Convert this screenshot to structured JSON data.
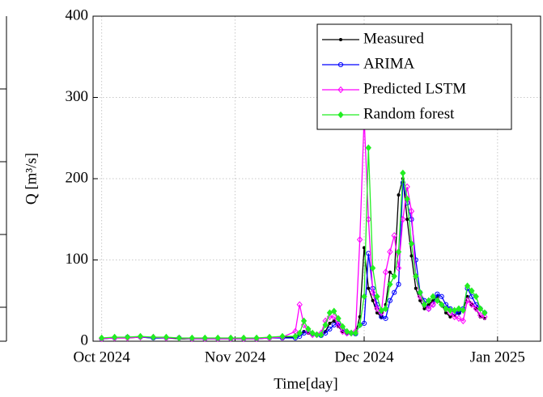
{
  "chart_data": {
    "type": "line",
    "ylabel": "Q [m³/s]",
    "xlabel": "Time[day]",
    "x": [
      0,
      3,
      6,
      9,
      12,
      15,
      18,
      21,
      24,
      27,
      30,
      33,
      36,
      39,
      42,
      45,
      46,
      47,
      48,
      49,
      50,
      51,
      52,
      53,
      54,
      55,
      56,
      57,
      58,
      59,
      60,
      61,
      62,
      63,
      64,
      65,
      66,
      67,
      68,
      69,
      70,
      71,
      72,
      73,
      74,
      75,
      76,
      77,
      78,
      79,
      80,
      81,
      82,
      83,
      84,
      85,
      86,
      87,
      88,
      89
    ],
    "series": [
      {
        "name": "Measured",
        "color": "#000000",
        "marker": "dot",
        "values": [
          3,
          4,
          4,
          5,
          4,
          4,
          3,
          3,
          3,
          3,
          3,
          3,
          3,
          4,
          5,
          5,
          8,
          12,
          10,
          8,
          7,
          8,
          12,
          22,
          25,
          18,
          12,
          10,
          9,
          10,
          30,
          115,
          65,
          50,
          35,
          30,
          45,
          85,
          80,
          180,
          200,
          150,
          105,
          65,
          50,
          40,
          45,
          50,
          55,
          45,
          35,
          30,
          32,
          35,
          38,
          55,
          45,
          40,
          30,
          28
        ]
      },
      {
        "name": "ARIMA",
        "color": "#0000ff",
        "marker": "circle",
        "values": [
          3,
          4,
          5,
          5,
          4,
          4,
          4,
          3,
          3,
          3,
          3,
          3,
          3,
          4,
          4,
          4,
          6,
          10,
          12,
          9,
          8,
          7,
          10,
          15,
          20,
          22,
          15,
          10,
          10,
          9,
          20,
          22,
          108,
          65,
          45,
          30,
          28,
          50,
          60,
          70,
          195,
          170,
          150,
          100,
          60,
          50,
          40,
          45,
          58,
          55,
          45,
          40,
          35,
          35,
          40,
          65,
          55,
          45,
          40,
          35
        ]
      },
      {
        "name": "Predicted LSTM",
        "color": "#ff00ff",
        "marker": "diamond",
        "values": [
          3,
          4,
          4,
          5,
          5,
          4,
          4,
          3,
          3,
          3,
          3,
          3,
          3,
          4,
          5,
          12,
          45,
          20,
          12,
          8,
          8,
          10,
          25,
          30,
          30,
          20,
          12,
          10,
          10,
          12,
          125,
          275,
          150,
          60,
          40,
          35,
          85,
          110,
          130,
          90,
          150,
          190,
          160,
          80,
          55,
          45,
          40,
          45,
          50,
          45,
          40,
          35,
          30,
          28,
          25,
          50,
          45,
          40,
          32,
          30
        ]
      },
      {
        "name": "Random forest",
        "color": "#22ee22",
        "marker": "filled-diamond",
        "values": [
          4,
          5,
          5,
          6,
          5,
          5,
          4,
          4,
          4,
          4,
          4,
          4,
          4,
          5,
          6,
          6,
          10,
          25,
          15,
          10,
          8,
          8,
          20,
          35,
          37,
          28,
          18,
          12,
          10,
          10,
          20,
          55,
          238,
          90,
          55,
          38,
          40,
          70,
          80,
          110,
          207,
          175,
          120,
          80,
          60,
          45,
          50,
          55,
          50,
          45,
          40,
          38,
          38,
          40,
          38,
          68,
          62,
          55,
          40,
          35
        ]
      }
    ],
    "xlim": [
      -2,
      102
    ],
    "xticks": [
      {
        "value": 0,
        "label": "Oct 2024"
      },
      {
        "value": 31,
        "label": "Nov 2024"
      },
      {
        "value": 61,
        "label": "Dec 2024"
      },
      {
        "value": 92,
        "label": "Jan 2025"
      }
    ],
    "ylim": [
      0,
      400
    ],
    "yticks": [
      0,
      100,
      200,
      300,
      400
    ],
    "grid": true,
    "legend": "top-right"
  }
}
